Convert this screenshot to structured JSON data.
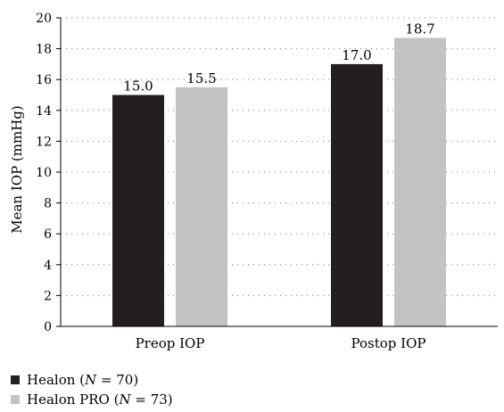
{
  "chart_data": {
    "type": "bar",
    "categories": [
      "Preop IOP",
      "Postop IOP"
    ],
    "series": [
      {
        "name": "Healon",
        "legend_n": "70",
        "color": "#231f20",
        "values": [
          15.0,
          17.0
        ],
        "labels": [
          "15.0",
          "17.0"
        ]
      },
      {
        "name": "Healon PRO",
        "legend_n": "73",
        "color": "#c3c3c3",
        "values": [
          15.5,
          18.7
        ],
        "labels": [
          "15.5",
          "18.7"
        ]
      }
    ],
    "ylabel": "Mean IOP (mmHg)",
    "ylim": [
      0,
      20
    ],
    "yticks": [
      "0",
      "2",
      "4",
      "6",
      "8",
      "10",
      "12",
      "14",
      "16",
      "18",
      "20"
    ],
    "grid": "dotted horizontal",
    "legend_placement": "bottom-left"
  }
}
